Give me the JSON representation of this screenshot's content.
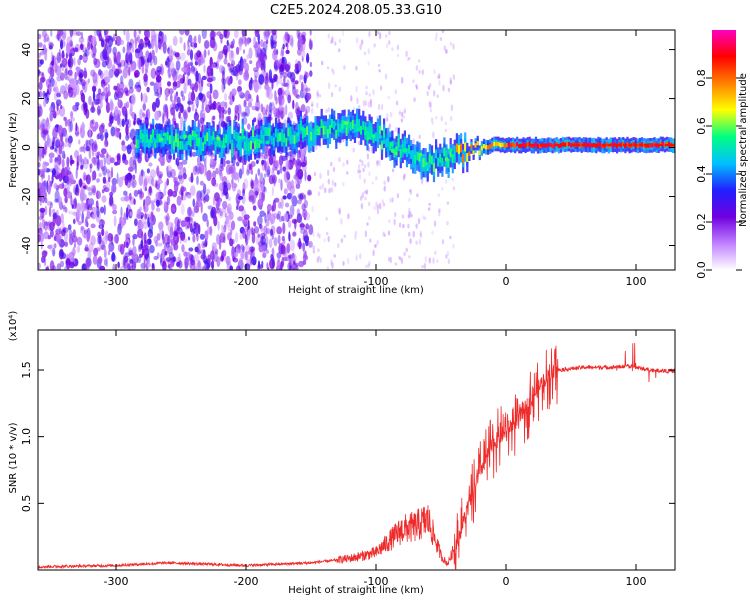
{
  "title": "C2E5.2024.208.05.33.G10",
  "chart_data": [
    {
      "type": "heatmap",
      "title": "C2E5.2024.208.05.33.G10",
      "xlabel": "Height of straight line (km)",
      "ylabel": "Frequency (Hz)",
      "xlim": [
        -360,
        130
      ],
      "ylim": [
        -50,
        48
      ],
      "xticks": [
        -300,
        -200,
        -100,
        0,
        100
      ],
      "xtick_labels": [
        "-300",
        "-200",
        "-100",
        "0",
        "100"
      ],
      "yticks": [
        -40,
        -20,
        0,
        20,
        40
      ],
      "ytick_labels": [
        "-40",
        "-20",
        "0",
        "20",
        "40"
      ],
      "colorbar": {
        "label": "Normalized spectral amplitude",
        "range": [
          0,
          1
        ],
        "ticks": [
          0,
          0.2,
          0.4,
          0.6,
          0.8
        ],
        "tick_labels": [
          "0.0",
          "0.2",
          "0.4",
          "0.6",
          "0.8"
        ],
        "colors": [
          "#ffffff",
          "#c080ff",
          "#7000e0",
          "#2020ff",
          "#00c0ff",
          "#00ff80",
          "#ffff00",
          "#ff8000",
          "#ff0000",
          "#ff00c0"
        ]
      },
      "ridge_frequency": {
        "x": [
          -280,
          -250,
          -220,
          -180,
          -150,
          -120,
          -100,
          -85,
          -70,
          -60,
          -50,
          -40,
          -30,
          -20,
          -10,
          0,
          20,
          40,
          60,
          80,
          100,
          130
        ],
        "y": [
          3,
          3,
          2,
          4,
          7,
          8,
          5,
          0,
          -4,
          -6,
          -5,
          -3,
          -1,
          0,
          1,
          1,
          1,
          1,
          1,
          1,
          1,
          1
        ]
      },
      "grid": false
    },
    {
      "type": "line",
      "xlabel": "Height of straight line (km)",
      "ylabel": "SNR (10 * v/v)",
      "y_multiplier": "(x10⁴)",
      "xlim": [
        -360,
        130
      ],
      "ylim": [
        0,
        1.8
      ],
      "xticks": [
        -300,
        -200,
        -100,
        0,
        100
      ],
      "xtick_labels": [
        "-300",
        "-200",
        "-100",
        "0",
        "100"
      ],
      "yticks": [
        0.5,
        1.0,
        1.5
      ],
      "ytick_labels": [
        "0.5",
        "1.0",
        "1.5"
      ],
      "color": "#ee2a2a",
      "series": [
        {
          "x": [
            -360,
            -300,
            -260,
            -200,
            -150,
            -120,
            -100,
            -90,
            -80,
            -70,
            -60,
            -50,
            -45,
            -40,
            -30,
            -20,
            -10,
            0,
            10,
            20,
            30,
            40,
            60,
            80,
            95,
            100,
            110,
            130
          ],
          "y": [
            0.02,
            0.03,
            0.05,
            0.03,
            0.05,
            0.08,
            0.12,
            0.2,
            0.28,
            0.3,
            0.35,
            0.1,
            0.04,
            0.15,
            0.45,
            0.75,
            0.95,
            1.05,
            1.15,
            1.3,
            1.45,
            1.5,
            1.52,
            1.52,
            1.53,
            1.52,
            1.5,
            1.49
          ]
        }
      ],
      "grid": false
    }
  ]
}
